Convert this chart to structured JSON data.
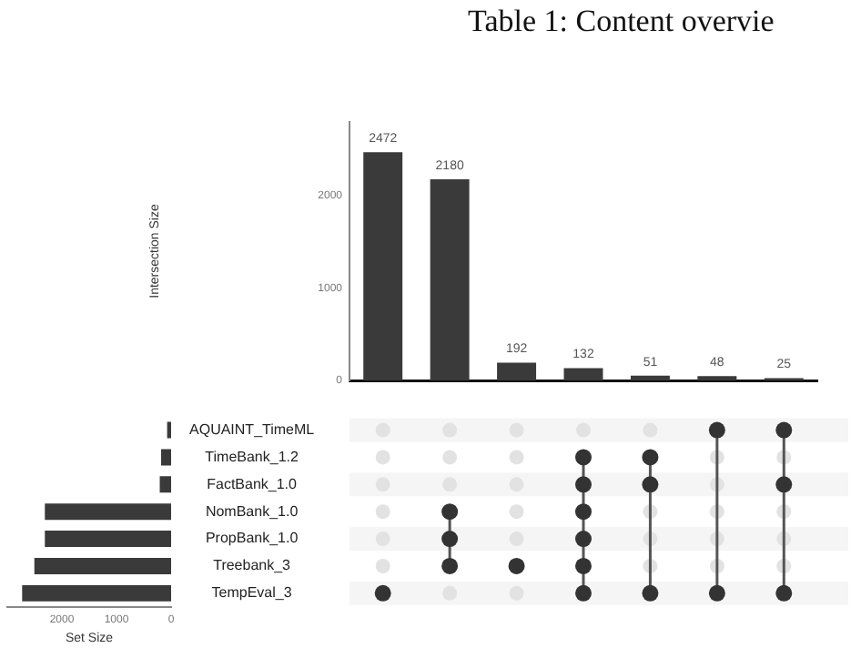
{
  "chart_data": [
    {
      "type": "bar",
      "annotations": [
        "Table 1: Content overvie"
      ],
      "ylabel": "Intersection Size",
      "categories": [
        null,
        null,
        null,
        null,
        null,
        null,
        null
      ],
      "values": [
        2472,
        2180,
        192,
        132,
        51,
        48,
        25
      ],
      "color": "#3a3a3a",
      "data_labels": true,
      "ylim": [
        0,
        2800
      ],
      "yticks": [
        0,
        1000,
        2000
      ],
      "tick_labels": "y",
      "grid": false,
      "legend": false
    },
    {
      "type": "bar",
      "orientation": "horizontal",
      "xlabel": "Set Size",
      "categories": [
        "AQUAINT_TimeML",
        "TimeBank_1.2",
        "FactBank_1.0",
        "NomBank_1.0",
        "PropBank_1.0",
        "Treebank_3",
        "TempEval_3"
      ],
      "values": [
        73,
        183,
        208,
        2312,
        2312,
        2504,
        2728
      ],
      "color": "#3a3a3a",
      "xlim": [
        3000,
        0
      ],
      "xticks": [
        2000,
        1000,
        0
      ],
      "grid": false,
      "legend": false
    }
  ]
}
